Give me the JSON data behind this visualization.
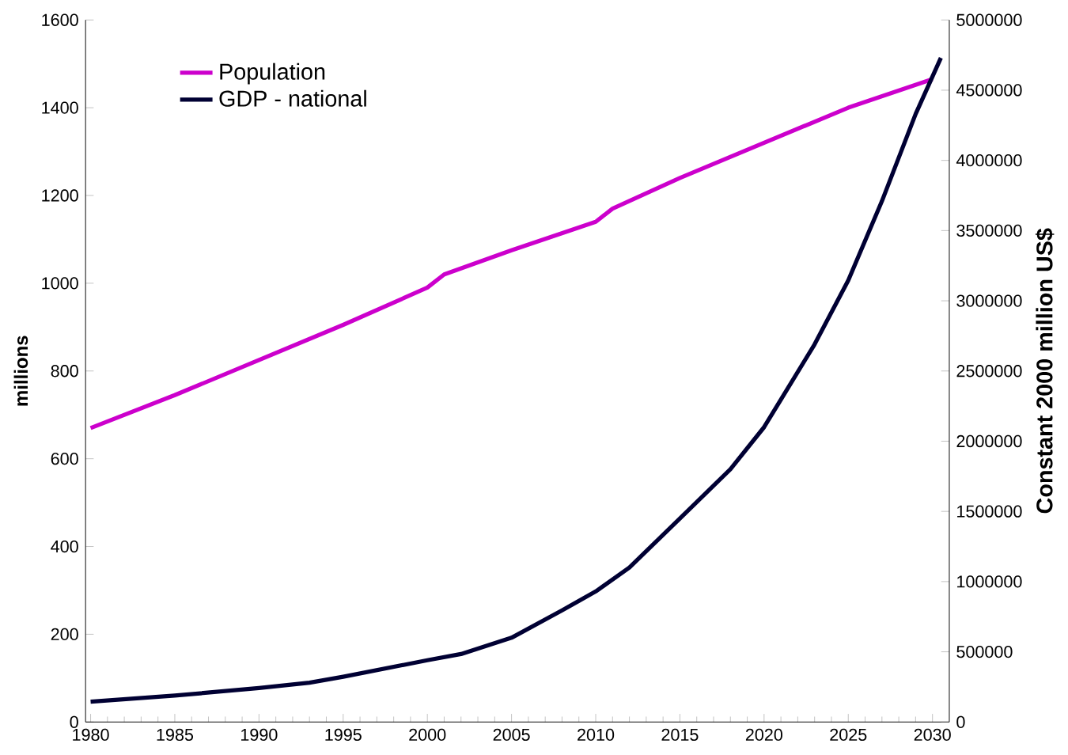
{
  "chart_data": {
    "type": "line",
    "ylabel": "millions",
    "y2label": "Constant 2000 million US$",
    "x": [
      1980,
      1985,
      1990,
      1995,
      2000,
      2001,
      2005,
      2010,
      2011,
      2015,
      2020,
      2025,
      2030
    ],
    "xlim": [
      1979.7,
      2031
    ],
    "xticks": [
      1980,
      1985,
      1990,
      1995,
      2000,
      2005,
      2010,
      2015,
      2020,
      2025,
      2030
    ],
    "ylim": [
      0,
      1600
    ],
    "yticks": [
      0,
      200,
      400,
      600,
      800,
      1000,
      1200,
      1400,
      1600
    ],
    "y2lim": [
      0,
      5000000
    ],
    "y2ticks": [
      0,
      500000,
      1000000,
      1500000,
      2000000,
      2500000,
      3000000,
      3500000,
      4000000,
      4500000,
      5000000
    ],
    "legend": "top left",
    "grid": false,
    "series": [
      {
        "name": "Population",
        "color": "#cc00cc",
        "values": [
          670,
          745,
          825,
          905,
          990,
          1020,
          1075,
          1140,
          1170,
          1240,
          1320,
          1400,
          1465
        ]
      },
      {
        "name": "GDP - national",
        "color": "#000033",
        "axis": "y2",
        "x": [
          1980,
          1985,
          1990,
          1993,
          1995,
          2000,
          2002,
          2005,
          2008,
          2010,
          2012,
          2015,
          2018,
          2020,
          2023,
          2025,
          2027,
          2029,
          2030.5
        ],
        "values": [
          145000,
          188000,
          242000,
          280000,
          322000,
          440000,
          484000,
          600000,
          795000,
          930000,
          1100000,
          1450000,
          1800000,
          2100000,
          2690000,
          3145000,
          3710000,
          4330000,
          4730000
        ]
      }
    ]
  }
}
